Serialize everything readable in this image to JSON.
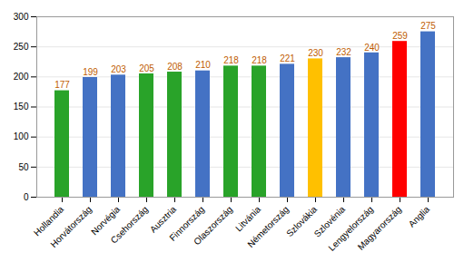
{
  "chart_data": {
    "type": "bar",
    "categories": [
      "Hollandia",
      "Horvátország",
      "Norvégia",
      "Csehország",
      "Ausztria",
      "Finnország",
      "Olaszország",
      "Litvánia",
      "Németország",
      "Szlovákia",
      "Szlovénia",
      "Lengyelország",
      "Magyarország",
      "Anglia"
    ],
    "values": [
      177,
      199,
      203,
      205,
      208,
      210,
      218,
      218,
      221,
      230,
      232,
      240,
      259,
      275
    ],
    "colors": [
      "#29a329",
      "#4472c4",
      "#4472c4",
      "#29a329",
      "#29a329",
      "#4472c4",
      "#29a329",
      "#29a329",
      "#4472c4",
      "#ffc000",
      "#4472c4",
      "#4472c4",
      "#ff0000",
      "#4472c4"
    ],
    "ylim": [
      0,
      300
    ],
    "yticks": [
      0,
      50,
      100,
      150,
      200,
      250,
      300
    ],
    "grid": true,
    "data_labels": true
  }
}
